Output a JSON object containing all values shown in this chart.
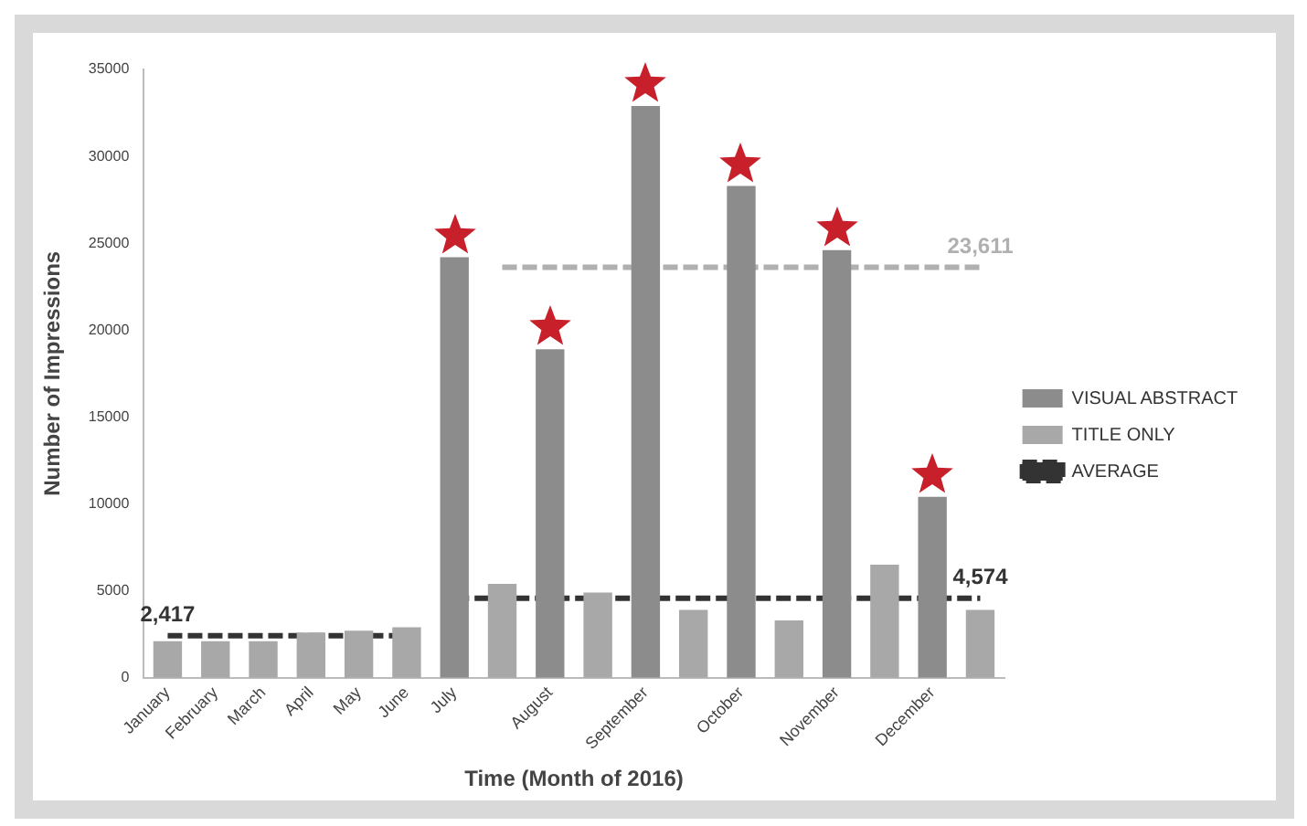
{
  "chart_data": {
    "type": "bar",
    "xlabel": "Time (Month of 2016)",
    "ylabel": "Number of Impressions",
    "categories": [
      "January",
      "February",
      "March",
      "April",
      "May",
      "June",
      "July",
      null,
      "August",
      null,
      "September",
      null,
      "October",
      null,
      "November",
      null,
      "December",
      null
    ],
    "series": [
      {
        "name": "VISUAL ABSTRACT",
        "color": "#8c8c8c",
        "marker": "star",
        "values": [
          null,
          null,
          null,
          null,
          null,
          null,
          24200,
          null,
          18900,
          null,
          32900,
          null,
          28300,
          null,
          24600,
          null,
          10400,
          null
        ]
      },
      {
        "name": "TITLE ONLY",
        "color": "#a8a8a8",
        "values": [
          2100,
          2100,
          2100,
          2600,
          2700,
          2900,
          null,
          5400,
          null,
          4900,
          null,
          3900,
          null,
          3300,
          null,
          6500,
          null,
          3900
        ]
      },
      {
        "name": "AVERAGE",
        "type": "line",
        "color": "#333333",
        "line_style": "dashed",
        "values": [
          2417,
          2417,
          2417,
          2417,
          2417,
          2417,
          null,
          null,
          null,
          null,
          null,
          null,
          null,
          null,
          null,
          null,
          null,
          null
        ],
        "value_labels": [
          "2,417",
          null,
          null,
          null,
          null,
          null,
          null,
          null,
          null,
          null,
          null,
          null,
          null,
          null,
          null,
          null,
          null,
          null
        ]
      },
      {
        "type": "line",
        "color": "#b0b0b0",
        "line_style": "dashed",
        "values": [
          null,
          null,
          null,
          null,
          null,
          null,
          null,
          23611,
          23611,
          23611,
          23611,
          23611,
          23611,
          23611,
          23611,
          23611,
          23611,
          23611
        ],
        "value_labels": [
          null,
          null,
          null,
          null,
          null,
          null,
          null,
          null,
          null,
          null,
          null,
          null,
          null,
          null,
          null,
          null,
          null,
          "23,611"
        ]
      },
      {
        "type": "line",
        "color": "#333333",
        "line_style": "dashed",
        "values": [
          null,
          null,
          null,
          null,
          null,
          null,
          4574,
          4574,
          4574,
          4574,
          4574,
          4574,
          4574,
          4574,
          4574,
          4574,
          4574,
          4574
        ],
        "value_labels": [
          null,
          null,
          null,
          null,
          null,
          null,
          null,
          null,
          null,
          null,
          null,
          null,
          null,
          null,
          null,
          null,
          null,
          "4,574"
        ]
      }
    ],
    "ylim": [
      0,
      35000
    ],
    "yticks": [
      0,
      5000,
      10000,
      15000,
      20000,
      25000,
      30000,
      35000
    ],
    "grid": false,
    "legend": "right"
  }
}
